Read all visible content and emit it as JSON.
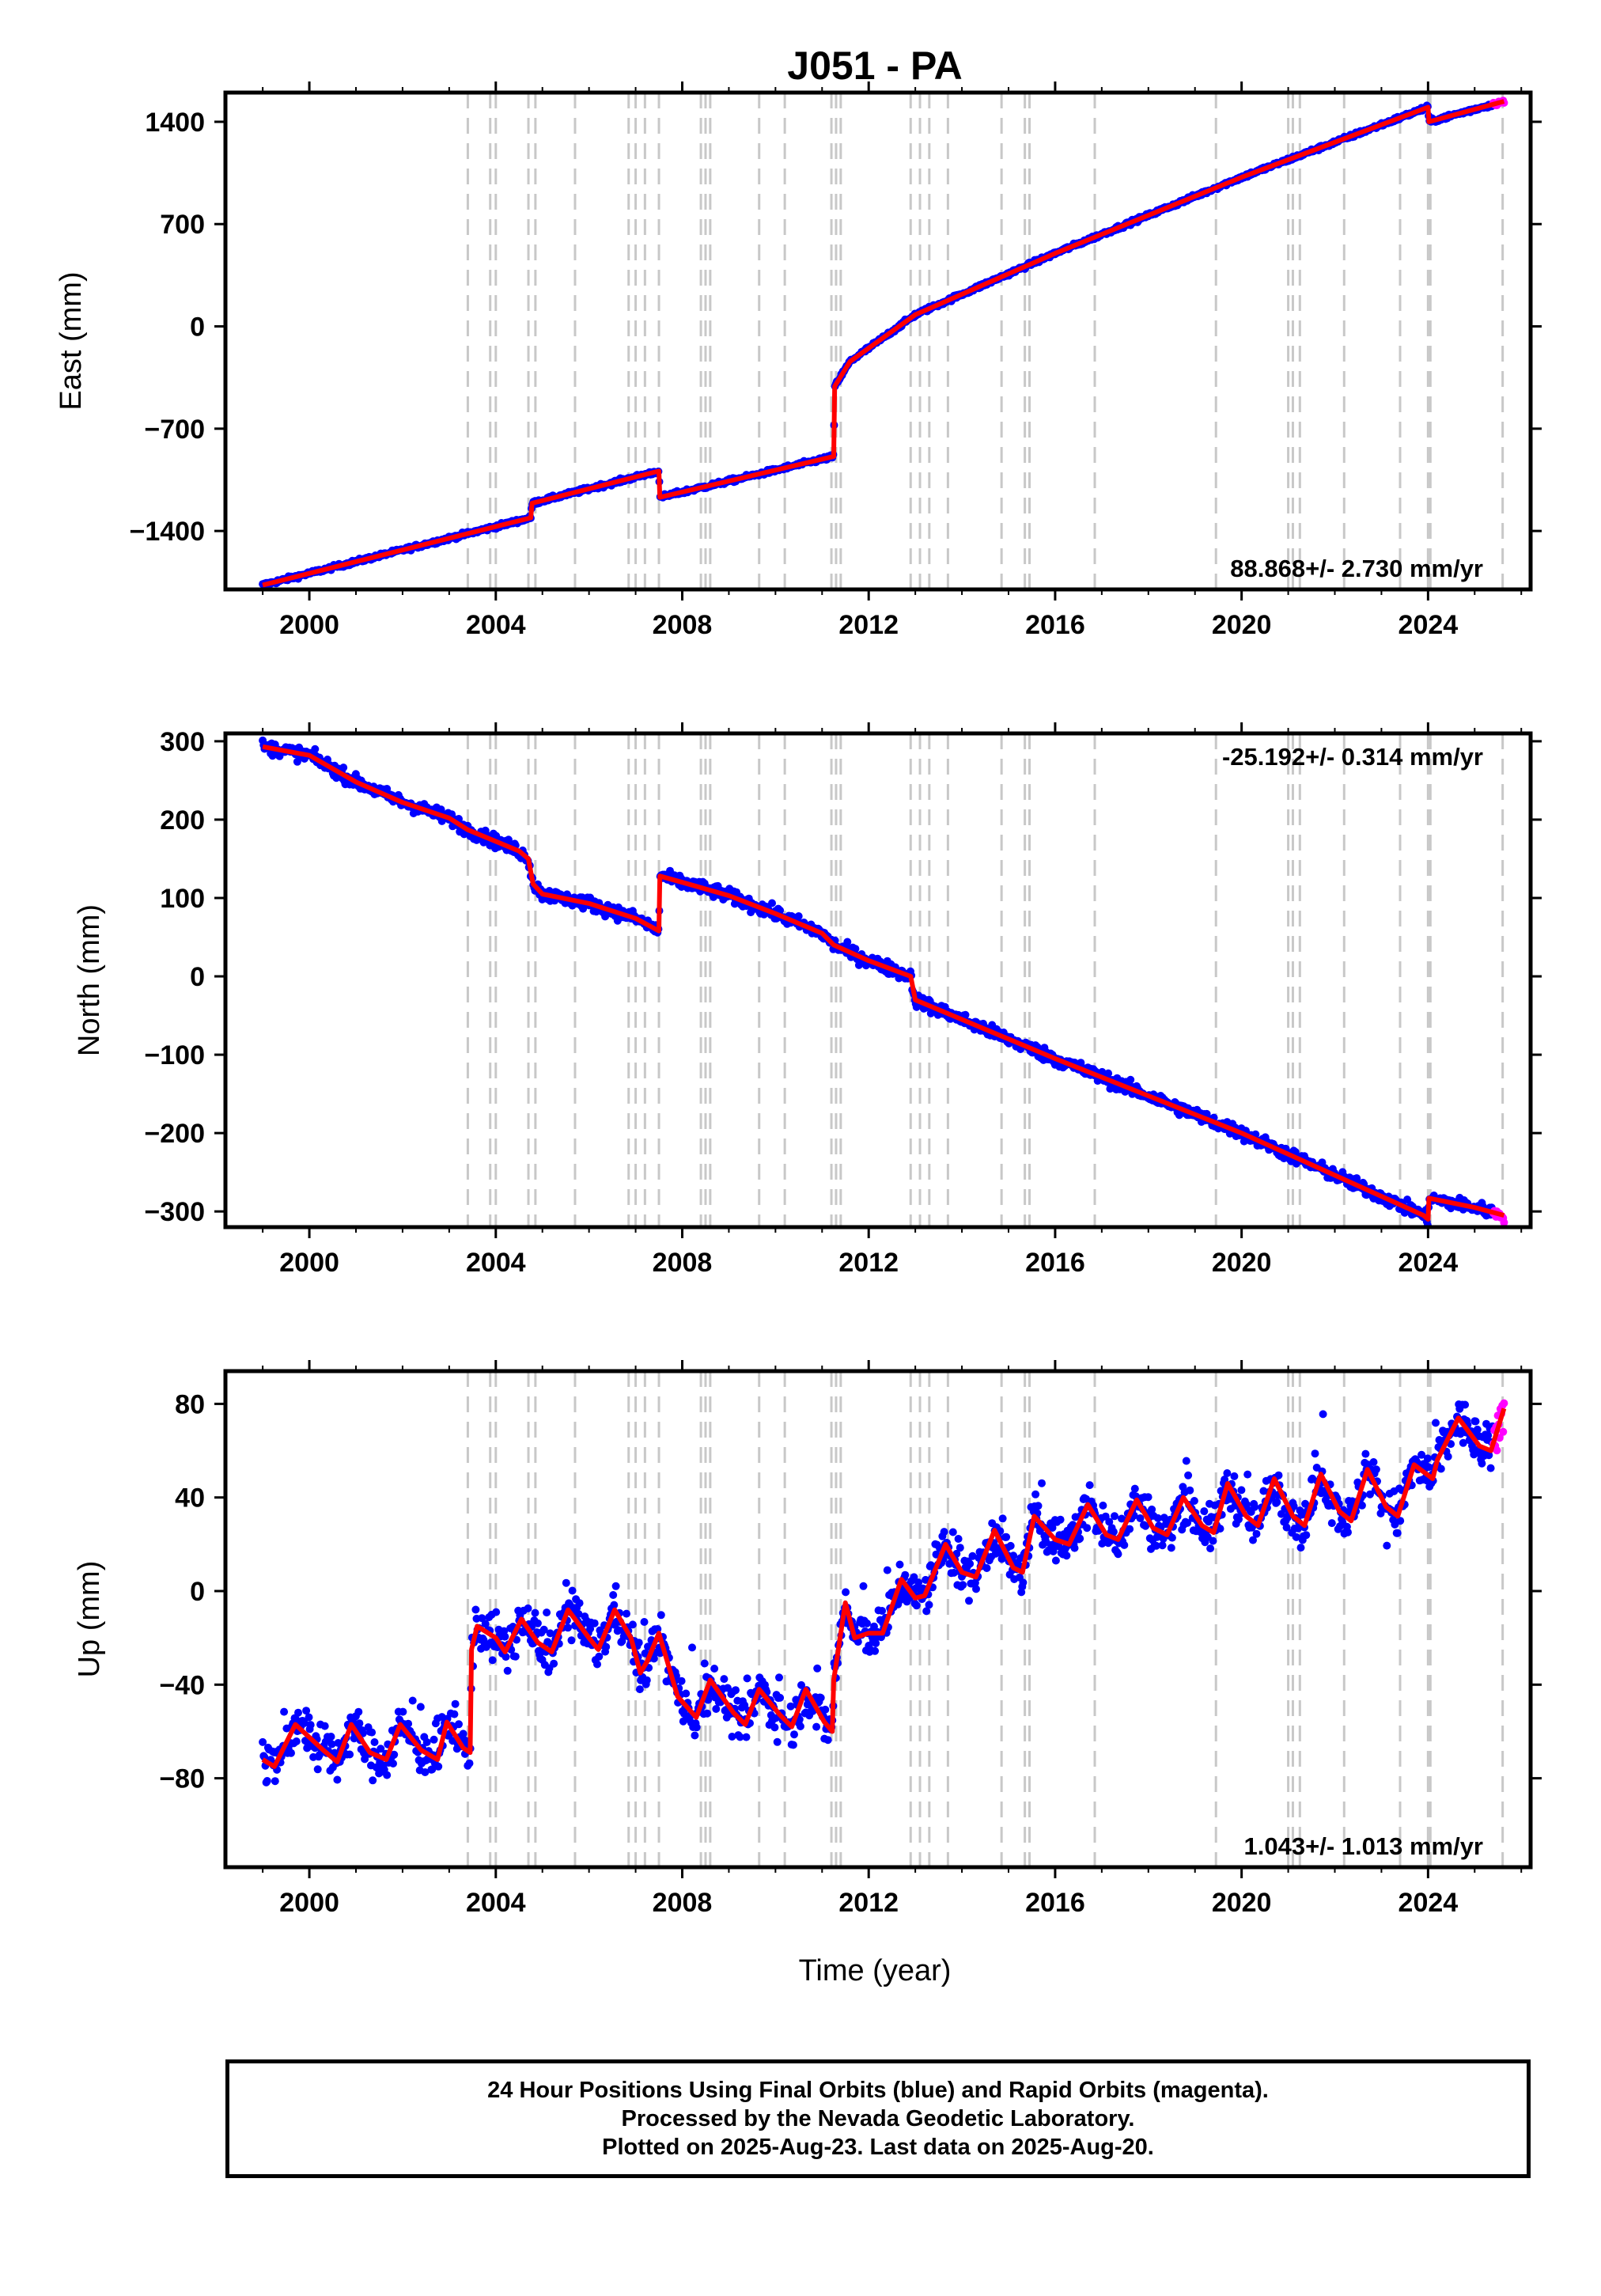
{
  "title": "J051 - PA",
  "colors": {
    "final_orbits": "#0000ff",
    "rapid_orbits": "#ff00ff",
    "model": "#ff0000",
    "events": "#c8c8c8",
    "frame": "#000000"
  },
  "caption": {
    "line1": "24 Hour Positions Using Final Orbits (blue) and Rapid Orbits (magenta).",
    "line2": "Processed by the Nevada Geodetic Laboratory.",
    "line3": "Plotted on 2025-Aug-23. Last data on 2025-Aug-20."
  },
  "chart_data": [
    {
      "type": "scatter",
      "panel": "east",
      "title": "J051 - PA",
      "xlabel": "",
      "ylabel": "East (mm)",
      "xlim": [
        1998.2,
        2026.2
      ],
      "ylim": [
        -1800,
        1600
      ],
      "xticks": [
        2000,
        2004,
        2008,
        2012,
        2016,
        2020,
        2024
      ],
      "yticks": [
        -1400,
        -700,
        0,
        700,
        1400
      ],
      "ytick_labels": [
        "−1400",
        "−700",
        "0",
        "700",
        "1400"
      ],
      "rate_label": "88.868+/- 2.730 mm/yr",
      "rate_position": "bottom-right",
      "grid": false,
      "model_series": [
        [
          1999.0,
          -1770
        ],
        [
          2004.75,
          -1310
        ],
        [
          2004.78,
          -1210
        ],
        [
          2007.5,
          -990
        ],
        [
          2007.52,
          -1170
        ],
        [
          2011.25,
          -890
        ],
        [
          2011.27,
          -410
        ],
        [
          2011.6,
          -240
        ],
        [
          2013.0,
          80
        ],
        [
          2016.0,
          500
        ],
        [
          2020.0,
          1020
        ],
        [
          2024.0,
          1500
        ],
        [
          2024.02,
          1400
        ],
        [
          2025.63,
          1540
        ]
      ],
      "rapid_range": [
        2025.4,
        2025.63
      ],
      "scatter_noise": 10
    },
    {
      "type": "scatter",
      "panel": "north",
      "xlabel": "",
      "ylabel": "North (mm)",
      "xlim": [
        1998.2,
        2026.2
      ],
      "ylim": [
        -320,
        310
      ],
      "xticks": [
        2000,
        2004,
        2008,
        2012,
        2016,
        2020,
        2024
      ],
      "yticks": [
        -300,
        -200,
        -100,
        0,
        100,
        200,
        300
      ],
      "ytick_labels": [
        "−300",
        "−200",
        "−100",
        "0",
        "100",
        "200",
        "300"
      ],
      "rate_label": "-25.192+/- 0.314 mm/yr",
      "rate_position": "top-right",
      "grid": false,
      "model_series": [
        [
          1999.0,
          293
        ],
        [
          2000.0,
          282
        ],
        [
          2001.0,
          248
        ],
        [
          2002.0,
          222
        ],
        [
          2003.0,
          202
        ],
        [
          2003.4,
          187
        ],
        [
          2004.5,
          160
        ],
        [
          2004.7,
          150
        ],
        [
          2004.8,
          118
        ],
        [
          2005.0,
          105
        ],
        [
          2006.0,
          93
        ],
        [
          2007.0,
          74
        ],
        [
          2007.5,
          58
        ],
        [
          2007.52,
          128
        ],
        [
          2008.0,
          120
        ],
        [
          2009.0,
          103
        ],
        [
          2010.0,
          80
        ],
        [
          2011.0,
          55
        ],
        [
          2011.25,
          40
        ],
        [
          2012.0,
          20
        ],
        [
          2012.9,
          0
        ],
        [
          2013.0,
          -30
        ],
        [
          2016.0,
          -105
        ],
        [
          2020.0,
          -200
        ],
        [
          2023.9,
          -305
        ],
        [
          2024.0,
          -310
        ],
        [
          2024.02,
          -283
        ],
        [
          2025.0,
          -295
        ],
        [
          2025.63,
          -305
        ]
      ],
      "rapid_range": [
        2025.4,
        2025.63
      ],
      "scatter_noise": 6
    },
    {
      "type": "scatter",
      "panel": "up",
      "xlabel": "Time (year)",
      "ylabel": "Up (mm)",
      "xlim": [
        1998.2,
        2026.2
      ],
      "ylim": [
        -118,
        94
      ],
      "xticks": [
        2000,
        2004,
        2008,
        2012,
        2016,
        2020,
        2024
      ],
      "yticks": [
        -80,
        -40,
        0,
        40,
        80
      ],
      "ytick_labels": [
        "−80",
        "−40",
        "0",
        "40",
        "80"
      ],
      "rate_label": "1.043+/- 1.013 mm/yr",
      "rate_position": "bottom-right",
      "grid": false,
      "model_series": [
        [
          1999.0,
          -72
        ],
        [
          1999.25,
          -75
        ],
        [
          1999.7,
          -57
        ],
        [
          2000.3,
          -68
        ],
        [
          2000.6,
          -73
        ],
        [
          2000.9,
          -57
        ],
        [
          2001.3,
          -69
        ],
        [
          2001.65,
          -72
        ],
        [
          2001.95,
          -57
        ],
        [
          2002.4,
          -68
        ],
        [
          2002.75,
          -72
        ],
        [
          2002.95,
          -56
        ],
        [
          2003.3,
          -67
        ],
        [
          2003.45,
          -69
        ],
        [
          2003.48,
          -25
        ],
        [
          2003.6,
          -15
        ],
        [
          2004.0,
          -20
        ],
        [
          2004.2,
          -26
        ],
        [
          2004.55,
          -12
        ],
        [
          2004.9,
          -22
        ],
        [
          2005.2,
          -26
        ],
        [
          2005.55,
          -8
        ],
        [
          2006.0,
          -20
        ],
        [
          2006.2,
          -25
        ],
        [
          2006.55,
          -8
        ],
        [
          2006.9,
          -20
        ],
        [
          2007.1,
          -35
        ],
        [
          2007.25,
          -30
        ],
        [
          2007.5,
          -18
        ],
        [
          2007.9,
          -45
        ],
        [
          2008.3,
          -54
        ],
        [
          2008.6,
          -38
        ],
        [
          2009.1,
          -52
        ],
        [
          2009.35,
          -57
        ],
        [
          2009.65,
          -42
        ],
        [
          2010.1,
          -53
        ],
        [
          2010.35,
          -58
        ],
        [
          2010.65,
          -42
        ],
        [
          2011.05,
          -56
        ],
        [
          2011.22,
          -60
        ],
        [
          2011.25,
          -38
        ],
        [
          2011.5,
          -5
        ],
        [
          2011.7,
          -20
        ],
        [
          2012.0,
          -18
        ],
        [
          2012.3,
          -18
        ],
        [
          2012.7,
          5
        ],
        [
          2013.0,
          -3
        ],
        [
          2013.2,
          -2
        ],
        [
          2013.65,
          20
        ],
        [
          2014.0,
          8
        ],
        [
          2014.3,
          6
        ],
        [
          2014.7,
          26
        ],
        [
          2015.1,
          10
        ],
        [
          2015.3,
          8
        ],
        [
          2015.55,
          32
        ],
        [
          2016.0,
          22
        ],
        [
          2016.3,
          20
        ],
        [
          2016.7,
          37
        ],
        [
          2017.1,
          24
        ],
        [
          2017.35,
          22
        ],
        [
          2017.75,
          39
        ],
        [
          2018.1,
          27
        ],
        [
          2018.4,
          24
        ],
        [
          2018.75,
          40
        ],
        [
          2019.15,
          28
        ],
        [
          2019.4,
          25
        ],
        [
          2019.7,
          46
        ],
        [
          2020.1,
          32
        ],
        [
          2020.35,
          28
        ],
        [
          2020.7,
          48
        ],
        [
          2021.1,
          32
        ],
        [
          2021.35,
          28
        ],
        [
          2021.7,
          50
        ],
        [
          2022.1,
          34
        ],
        [
          2022.35,
          30
        ],
        [
          2022.7,
          52
        ],
        [
          2023.1,
          36
        ],
        [
          2023.35,
          32
        ],
        [
          2023.7,
          54
        ],
        [
          2024.1,
          48
        ],
        [
          2024.2,
          56
        ],
        [
          2024.65,
          74
        ],
        [
          2025.1,
          62
        ],
        [
          2025.35,
          60
        ],
        [
          2025.63,
          78
        ]
      ],
      "rapid_range": [
        2025.4,
        2025.63
      ],
      "scatter_noise": 7
    }
  ],
  "event_lines": [
    2003.4,
    2003.88,
    2004.0,
    2004.7,
    2004.85,
    2005.7,
    2006.85,
    2007.0,
    2007.2,
    2007.5,
    2008.4,
    2008.5,
    2008.6,
    2009.65,
    2010.2,
    2011.2,
    2011.3,
    2011.4,
    2012.9,
    2013.1,
    2013.3,
    2013.7,
    2014.85,
    2015.35,
    2015.45,
    2016.85,
    2019.45,
    2021.0,
    2021.1,
    2021.25,
    2022.2,
    2023.4,
    2024.0,
    2024.05,
    2025.6
  ]
}
